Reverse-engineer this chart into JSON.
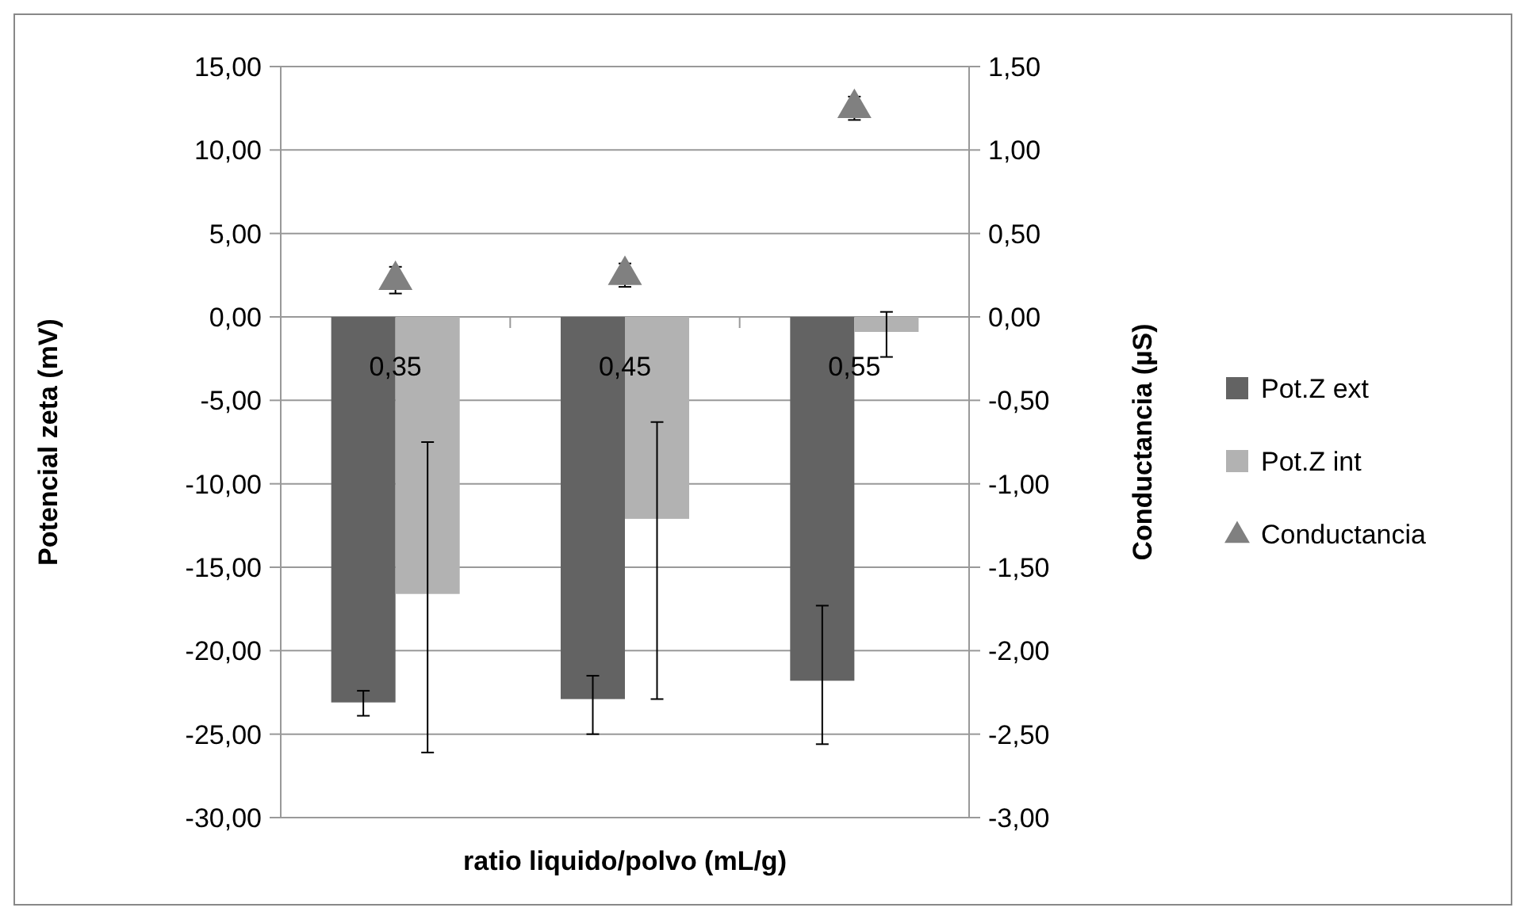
{
  "chart_data": {
    "type": "bar",
    "xlabel": "ratio liquido/polvo (mL/g)",
    "ylabel": "Potencial zeta (mV)",
    "y2label": "Conductancia (µS)",
    "categories": [
      "0,35",
      "0,45",
      "0,55"
    ],
    "series": [
      {
        "name": "Pot.Z ext",
        "color": "#636363",
        "values": [
          -23.1,
          -22.9,
          -21.8
        ],
        "errors": [
          [
            -23.9,
            -22.4
          ],
          [
            -25.0,
            -21.5
          ],
          [
            -25.6,
            -17.3
          ]
        ]
      },
      {
        "name": "Pot.Z int",
        "color": "#b2b2b2",
        "values": [
          -16.6,
          -12.1,
          -0.9
        ],
        "errors": [
          [
            -26.1,
            -7.5
          ],
          [
            -22.9,
            -6.3
          ],
          [
            -2.4,
            0.3
          ]
        ]
      },
      {
        "name": "Conductancia",
        "type": "scatter",
        "axis": "y2",
        "marker": "triangle",
        "color": "#808080",
        "values": [
          0.22,
          0.25,
          1.25
        ],
        "errors": [
          0.08,
          0.07,
          0.07
        ]
      }
    ],
    "ylim": [
      -30,
      15
    ],
    "yticks": [
      {
        "value": -30,
        "label": "-30,00"
      },
      {
        "value": -25,
        "label": "-25,00"
      },
      {
        "value": -20,
        "label": "-20,00"
      },
      {
        "value": -15,
        "label": "-15,00"
      },
      {
        "value": -10,
        "label": "-10,00"
      },
      {
        "value": -5,
        "label": "-5,00"
      },
      {
        "value": 0,
        "label": "0,00"
      },
      {
        "value": 5,
        "label": "5,00"
      },
      {
        "value": 10,
        "label": "10,00"
      },
      {
        "value": 15,
        "label": "15,00"
      }
    ],
    "y2lim": [
      -3,
      1.5
    ],
    "y2ticks": [
      {
        "value": -3,
        "label": "-3,00"
      },
      {
        "value": -2.5,
        "label": "-2,50"
      },
      {
        "value": -2,
        "label": "-2,00"
      },
      {
        "value": -1.5,
        "label": "-1,50"
      },
      {
        "value": -1,
        "label": "-1,00"
      },
      {
        "value": -0.5,
        "label": "-0,50"
      },
      {
        "value": 0,
        "label": "0,00"
      },
      {
        "value": 0.5,
        "label": "0,50"
      },
      {
        "value": 1,
        "label": "1,00"
      },
      {
        "value": 1.5,
        "label": "1,50"
      }
    ],
    "grid": "y",
    "legend": "right"
  }
}
